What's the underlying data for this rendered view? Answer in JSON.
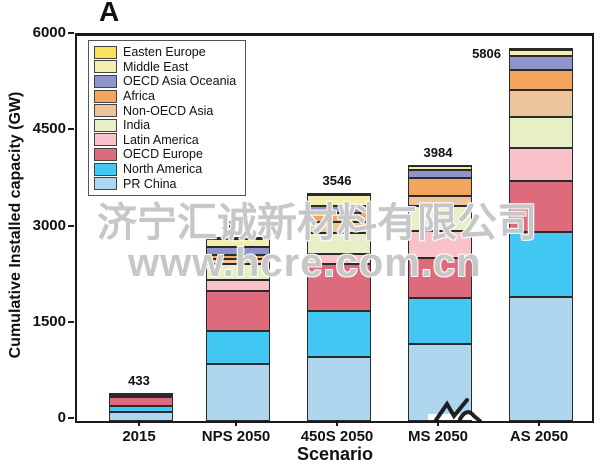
{
  "figure": {
    "panel_label": "A",
    "watermark_line1": "济宁汇诚新材料有限公司",
    "watermark_line2": "www.hcre.com.cn"
  },
  "chart_data": {
    "type": "bar",
    "stacked": true,
    "title": "A",
    "xlabel": "Scenario",
    "ylabel": "Cumulative Installed capacity (GW)",
    "ylim": [
      0,
      6000
    ],
    "yticks": [
      0,
      1500,
      3000,
      4500,
      6000
    ],
    "grid": false,
    "categories": [
      "2015",
      "NPS 2050",
      "450S 2050",
      "MS 2050",
      "AS 2050"
    ],
    "bar_totals": [
      433,
      2870,
      3546,
      3984,
      5806
    ],
    "series_order": "bottom-to-top",
    "series": [
      {
        "name": "PR China",
        "color": "#AED6EF",
        "values": [
          145,
          890,
          1005,
          1200,
          1940
        ]
      },
      {
        "name": "North America",
        "color": "#41C7F2",
        "values": [
          88,
          520,
          715,
          720,
          1000
        ]
      },
      {
        "name": "OECD Europe",
        "color": "#DD6B7B",
        "values": [
          147,
          610,
          730,
          620,
          795
        ]
      },
      {
        "name": "Latin America",
        "color": "#F9C2CB",
        "values": [
          13,
          170,
          146,
          415,
          520
        ]
      },
      {
        "name": "India",
        "color": "#E7EFC6",
        "values": [
          25,
          260,
          340,
          395,
          485
        ]
      },
      {
        "name": "Non-OECD Asia",
        "color": "#ECC59D",
        "values": [
          5,
          70,
          165,
          155,
          420
        ]
      },
      {
        "name": "Africa",
        "color": "#F2A55C",
        "values": [
          3,
          65,
          135,
          280,
          315
        ]
      },
      {
        "name": "OECD Asia Oceania",
        "color": "#9094CC",
        "values": [
          4,
          130,
          115,
          130,
          210
        ]
      },
      {
        "name": "Middle East",
        "color": "#F3EDAE",
        "values": [
          1,
          125,
          165,
          55,
          90
        ]
      },
      {
        "name": "Easten Europe",
        "color": "#F6E25F",
        "values": [
          2,
          30,
          30,
          14,
          31
        ]
      }
    ],
    "legend": {
      "position": "upper left",
      "items_top_to_bottom": [
        "Easten Europe",
        "Middle East",
        "OECD Asia Oceania",
        "Africa",
        "Non-OECD Asia",
        "India",
        "Latin America",
        "OECD Europe",
        "North America",
        "PR China"
      ]
    }
  }
}
